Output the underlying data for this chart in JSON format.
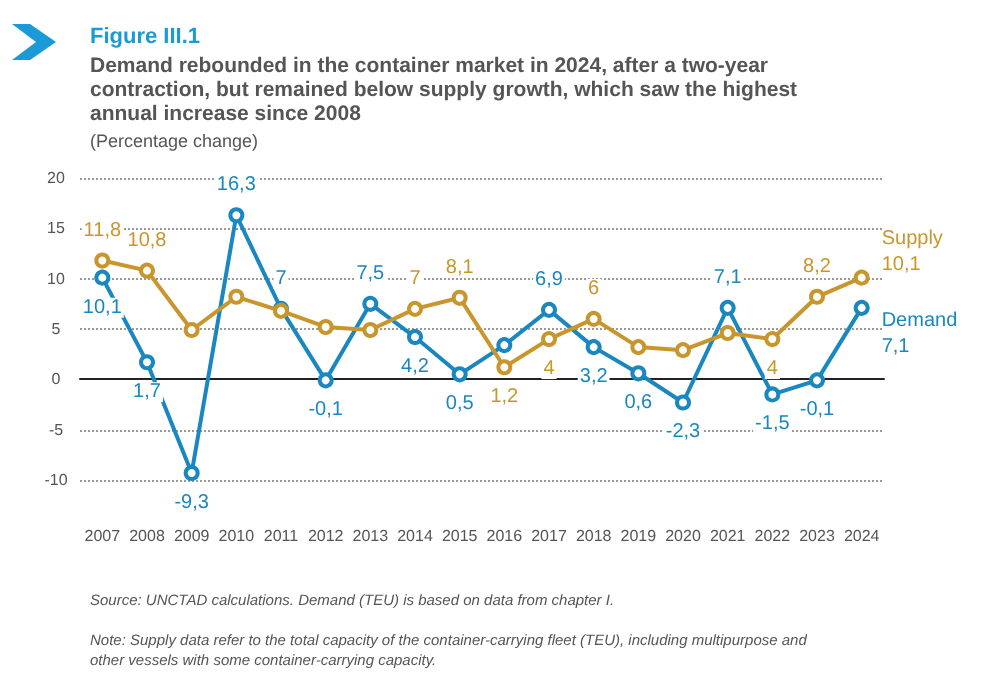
{
  "chart_data": {
    "type": "line",
    "title": "Figure III.1",
    "subtitle": "Demand rebounded in the container market in 2024, after a two-year\ncontraction, but remained below supply growth, which saw the highest\nannual increase since 2008",
    "ylabel": "(Percentage change)",
    "categories": [
      "2007",
      "2008",
      "2009",
      "2010",
      "2011",
      "2012",
      "2013",
      "2014",
      "2015",
      "2016",
      "2017",
      "2018",
      "2019",
      "2020",
      "2021",
      "2022",
      "2023",
      "2024"
    ],
    "series": [
      {
        "name": "Supply",
        "color": "#c9962e",
        "values": [
          11.8,
          10.8,
          4.9,
          8.2,
          6.8,
          5.2,
          4.9,
          7,
          8.1,
          1.2,
          4,
          6,
          3.2,
          2.9,
          4.6,
          4,
          8.2,
          10.1
        ],
        "value_labels": [
          "11,8",
          "10,8",
          null,
          null,
          null,
          null,
          null,
          "7",
          "8,1",
          "1,2",
          "4",
          "6",
          null,
          null,
          null,
          "4",
          "8,2",
          "10,1"
        ]
      },
      {
        "name": "Demand",
        "color": "#1a87c0",
        "values": [
          10.1,
          1.7,
          -9.3,
          16.3,
          7,
          -0.1,
          7.5,
          4.2,
          0.5,
          3.4,
          6.9,
          3.2,
          0.6,
          -2.3,
          7.1,
          -1.5,
          -0.1,
          7.1
        ],
        "value_labels": [
          "10,1",
          "1,7",
          "-9,3",
          "16,3",
          "7",
          "-0,1",
          "7,5",
          "4,2",
          "0,5",
          null,
          "6,9",
          "3,2",
          "0,6",
          "-2,3",
          "7,1",
          "-1,5",
          "-0,1",
          "7,1"
        ]
      }
    ],
    "ylim": [
      -10,
      20
    ],
    "yticks": [
      -10,
      -5,
      0,
      5,
      10,
      15,
      20
    ],
    "grid": "y",
    "marker": "circle",
    "line_style": "solid",
    "annotations": [
      "Source: UNCTAD calculations. Demand (TEU) is based on data from chapter I.",
      "Note: Supply data refer to the total capacity of the container-carrying fleet (TEU), including multipurpose and\nother vessels with some container-carrying capacity."
    ]
  }
}
